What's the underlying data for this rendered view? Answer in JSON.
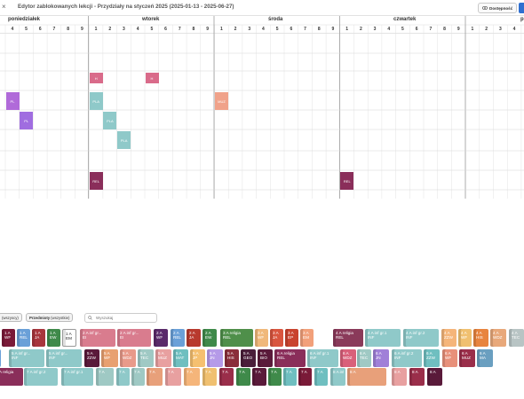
{
  "header": {
    "title": "Edytor zablokowanych lekcji - Przydziały na styczeń 2025 (2025-01-13 - 2025-06-27)",
    "availability_button": "Dostępność",
    "close_label": "×"
  },
  "timetable": {
    "days": [
      "poniedziałek",
      "wtorek",
      "środa",
      "czwartek",
      "pi"
    ],
    "period_labels": [
      "4",
      "5",
      "6",
      "7",
      "8",
      "9",
      "1",
      "2",
      "3",
      "4",
      "5",
      "6",
      "7",
      "8",
      "9",
      "1",
      "2",
      "3",
      "4",
      "5",
      "6",
      "7",
      "8",
      "9",
      "1",
      "2",
      "3",
      "4",
      "5",
      "6",
      "7",
      "8",
      "9",
      "1",
      "2",
      "3",
      "4"
    ],
    "placed_lessons": [
      {
        "label": "H",
        "col": 6,
        "row": 2,
        "color": "#d96b8a"
      },
      {
        "label": "H",
        "col": 10,
        "row": 2,
        "color": "#d96b8a"
      },
      {
        "label": "PL",
        "col": 0,
        "row": 3,
        "color": "#b06ad9"
      },
      {
        "label": "PLA",
        "col": 6,
        "row": 3,
        "color": "#8fc9c9"
      },
      {
        "label": "MUZ",
        "col": 15,
        "row": 3,
        "color": "#f0a28a"
      },
      {
        "label": "PL",
        "col": 1,
        "row": 4,
        "color": "#a06de0"
      },
      {
        "label": "PLA",
        "col": 7,
        "row": 4,
        "color": "#8fc9c9"
      },
      {
        "label": "PLA",
        "col": 8,
        "row": 5,
        "color": "#8fc9c9"
      },
      {
        "label": "REL",
        "col": 6,
        "row": 7,
        "color": "#8a2e5a"
      },
      {
        "label": "REL",
        "col": 24,
        "row": 7,
        "color": "#8a2e5a"
      }
    ]
  },
  "filters": {
    "teachers_chip": {
      "name": "(wszyscy)"
    },
    "subjects_chip": {
      "name": "Przedmioty",
      "value": "(wszystkie)"
    },
    "search_placeholder": "Wyszukaj"
  },
  "lesson_tiles": {
    "row1": [
      {
        "l1": "1 A",
        "l2": "WF",
        "color": "#7a1a38"
      },
      {
        "l1": "1 A",
        "l2": "REL",
        "color": "#6aa0d8"
      },
      {
        "l1": "1 A",
        "l2": "JA",
        "color": "#a8353c"
      },
      {
        "l1": "1 A",
        "l2": "EW",
        "color": "#3f8a4a"
      },
      {
        "l1": "1 A",
        "l2": "EM",
        "color": "#ffffff",
        "dark": true
      },
      {
        "l1": "2 A inf gr...",
        "l2": "EI",
        "color": "#d97c8e"
      },
      {
        "l1": "2 A inf gr...",
        "l2": "EI",
        "color": "#d97c8e"
      },
      {
        "l1": "2 A",
        "l2": "WF",
        "color": "#5a2a6a"
      },
      {
        "l1": "2 A",
        "l2": "REL",
        "color": "#6aa0d8"
      },
      {
        "l1": "2 A",
        "l2": "JA",
        "color": "#b83a2e"
      },
      {
        "l1": "2 A",
        "l2": "EW",
        "color": "#3f8a4a"
      },
      {
        "l1": "3 A religia",
        "l2": "REL",
        "color": "#4f8f4a"
      },
      {
        "l1": "3 A",
        "l2": "WF",
        "color": "#f0b87a"
      },
      {
        "l1": "3 A",
        "l2": "JA",
        "color": "#d9553e"
      },
      {
        "l1": "3 A",
        "l2": "EP",
        "color": "#c9432e"
      },
      {
        "l1": "3 A",
        "l2": "EM",
        "color": "#f2a07a"
      },
      {
        "l1": "4 A religia",
        "l2": "REL",
        "color": "#8a3a5a"
      },
      {
        "l1": "4 A inf gr.1",
        "l2": "INF",
        "color": "#8fc9c9"
      },
      {
        "l1": "4 A inf gr.2",
        "l2": "INF",
        "color": "#8fc9c9"
      },
      {
        "l1": "4 A",
        "l2": "ZZW",
        "color": "#f5b57a"
      },
      {
        "l1": "4 A",
        "l2": "WF",
        "color": "#f0c070"
      },
      {
        "l1": "4 A",
        "l2": "HIS",
        "color": "#e8843e"
      },
      {
        "l1": "4 A",
        "l2": "WDZ",
        "color": "#e8a87a"
      },
      {
        "l1": "4 A",
        "l2": "TEC",
        "color": "#b8c4c4"
      }
    ],
    "row2": [
      {
        "l1": "",
        "l2": "INF",
        "color": "#6aa0d8"
      },
      {
        "l1": "5 A inf gr...",
        "l2": "INF",
        "color": "#8fc9c9"
      },
      {
        "l1": "5 A inf gr...",
        "l2": "INF",
        "color": "#8fc9c9"
      },
      {
        "l1": "5 A",
        "l2": "ZZW",
        "color": "#5a1a3a"
      },
      {
        "l1": "5 A",
        "l2": "WF",
        "color": "#e8a070"
      },
      {
        "l1": "5 A",
        "l2": "WDZ",
        "color": "#e89a8a"
      },
      {
        "l1": "5 A",
        "l2": "TEC",
        "color": "#9fc9c4"
      },
      {
        "l1": "5 A",
        "l2": "MUZ",
        "color": "#e8a0a0"
      },
      {
        "l1": "5 A",
        "l2": "MAT",
        "color": "#6fbfc0"
      },
      {
        "l1": "5 A",
        "l2": "JP",
        "color": "#f5c070"
      },
      {
        "l1": "5 A",
        "l2": "JN",
        "color": "#b59ae8"
      },
      {
        "l1": "5 A",
        "l2": "HIS",
        "color": "#8a2e3a"
      },
      {
        "l1": "5 A",
        "l2": "GEO",
        "color": "#4a1e3a"
      },
      {
        "l1": "5 A",
        "l2": "BIO",
        "color": "#5a1a3a"
      },
      {
        "l1": "6 A religia",
        "l2": "REL",
        "color": "#8a2e5a"
      },
      {
        "l1": "6 A inf gr.1",
        "l2": "INF",
        "color": "#8fc9c9"
      },
      {
        "l1": "6 A",
        "l2": "WDZ",
        "color": "#d9607a"
      },
      {
        "l1": "6 A",
        "l2": "TEC",
        "color": "#9fc9c4"
      },
      {
        "l1": "6 A",
        "l2": "JN",
        "color": "#a080d8"
      },
      {
        "l1": "6 A inf gr.2",
        "l2": "INF",
        "color": "#8fc9c9"
      },
      {
        "l1": "6 A",
        "l2": "ZZW",
        "color": "#6fbfc0"
      },
      {
        "l1": "6 A",
        "l2": "WF",
        "color": "#e8907a"
      },
      {
        "l1": "6 A",
        "l2": "MUZ",
        "color": "#9a2e4a"
      },
      {
        "l1": "6 A",
        "l2": "MA",
        "color": "#6a9fc0"
      }
    ],
    "row3": [
      {
        "l1": "A religia",
        "l2": "",
        "color": "#8a2e5a"
      },
      {
        "l1": "7 A inf gr.2",
        "l2": "",
        "color": "#8fc9c9"
      },
      {
        "l1": "7 A inf gr.1",
        "l2": "",
        "color": "#8fc9c9"
      },
      {
        "l1": "7 A",
        "l2": "",
        "color": "#9fc9c4"
      },
      {
        "l1": "7 A",
        "l2": "",
        "color": "#8fc9c9"
      },
      {
        "l1": "7 A",
        "l2": "",
        "color": "#9fc9c4"
      },
      {
        "l1": "7 A",
        "l2": "",
        "color": "#e8a07a"
      },
      {
        "l1": "7 A",
        "l2": "",
        "color": "#e8a0a0"
      },
      {
        "l1": "7 A",
        "l2": "",
        "color": "#f5b57a"
      },
      {
        "l1": "7 A",
        "l2": "",
        "color": "#f0c070"
      },
      {
        "l1": "7 A",
        "l2": "",
        "color": "#9a2e4a"
      },
      {
        "l1": "7 A",
        "l2": "",
        "color": "#3f8a4a"
      },
      {
        "l1": "7 A",
        "l2": "",
        "color": "#5a1a3a"
      },
      {
        "l1": "7 A",
        "l2": "",
        "color": "#3f8a4a"
      },
      {
        "l1": "7 A",
        "l2": "",
        "color": "#6fbfc0"
      },
      {
        "l1": "7 A",
        "l2": "",
        "color": "#7a1a38"
      },
      {
        "l1": "7 A",
        "l2": "",
        "color": "#6fbfc0"
      },
      {
        "l1": "8 A inf gr.1",
        "l2": "",
        "color": "#8fc9c9"
      },
      {
        "l1": "8 A",
        "l2": "",
        "color": "#e8a07a"
      },
      {
        "l1": "8 A",
        "l2": "",
        "color": "#e8a0a0"
      },
      {
        "l1": "8 A",
        "l2": "",
        "color": "#9a2e4a"
      },
      {
        "l1": "8 A",
        "l2": "",
        "color": "#5a1a3a"
      }
    ]
  }
}
